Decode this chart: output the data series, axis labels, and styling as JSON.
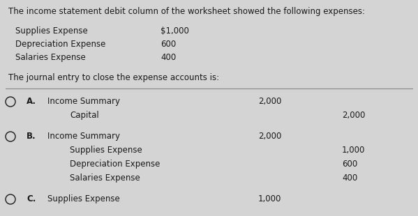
{
  "bg_color": "#d4d4d4",
  "text_color": "#1a1a1a",
  "title_line": "The income statement debit column of the worksheet showed the following expenses:",
  "expenses": [
    {
      "label": "Supplies Expense",
      "amount": "$1,000"
    },
    {
      "label": "Depreciation Expense",
      "amount": "600"
    },
    {
      "label": "Salaries Expense",
      "amount": "400"
    }
  ],
  "question": "The journal entry to close the expense accounts is:",
  "options": [
    {
      "letter": "A.",
      "entries": [
        {
          "indent": 0,
          "label": "Income Summary",
          "debit": "2,000",
          "credit": ""
        },
        {
          "indent": 1,
          "label": "Capital",
          "debit": "",
          "credit": "2,000"
        }
      ]
    },
    {
      "letter": "B.",
      "entries": [
        {
          "indent": 0,
          "label": "Income Summary",
          "debit": "2,000",
          "credit": ""
        },
        {
          "indent": 1,
          "label": "Supplies Expense",
          "debit": "",
          "credit": "1,000"
        },
        {
          "indent": 1,
          "label": "Depreciation Expense",
          "debit": "",
          "credit": "600"
        },
        {
          "indent": 1,
          "label": "Salaries Expense",
          "debit": "",
          "credit": "400"
        }
      ]
    },
    {
      "letter": "C.",
      "entries": [
        {
          "indent": 0,
          "label": "Supplies Expense",
          "debit": "1,000",
          "credit": ""
        }
      ]
    }
  ],
  "font_size_title": 8.5,
  "font_size_body": 8.5
}
